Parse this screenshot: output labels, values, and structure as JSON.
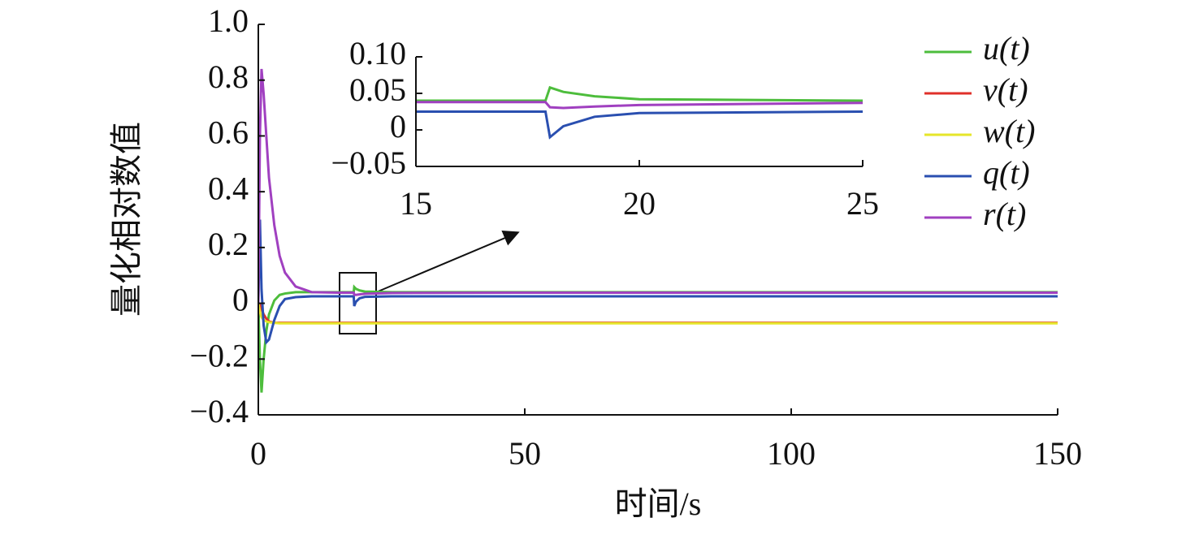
{
  "chart_data": {
    "type": "line",
    "xlabel": "时间/s",
    "ylabel": "量化相对数值",
    "x": [
      0,
      0.3,
      0.6,
      1,
      1.5,
      2,
      3,
      4,
      5,
      7,
      10,
      15,
      17.9,
      18,
      18.3,
      19,
      20,
      25,
      50,
      100,
      150
    ],
    "series": [
      {
        "name": "u(t)",
        "color": "#4dbd3c",
        "values": [
          0,
          -0.2,
          -0.32,
          -0.2,
          -0.1,
          -0.04,
          0.01,
          0.03,
          0.035,
          0.04,
          0.04,
          0.04,
          0.04,
          0.058,
          0.052,
          0.046,
          0.042,
          0.04,
          0.04,
          0.04,
          0.04
        ]
      },
      {
        "name": "v(t)",
        "color": "#e0302a",
        "values": [
          0,
          -0.005,
          -0.02,
          -0.04,
          -0.055,
          -0.065,
          -0.07,
          -0.07,
          -0.07,
          -0.07,
          -0.07,
          -0.07,
          -0.07,
          -0.07,
          -0.07,
          -0.07,
          -0.07,
          -0.07,
          -0.07,
          -0.07,
          -0.07
        ]
      },
      {
        "name": "w(t)",
        "color": "#e6e62a",
        "values": [
          0,
          -0.03,
          -0.05,
          -0.06,
          -0.065,
          -0.068,
          -0.07,
          -0.072,
          -0.072,
          -0.072,
          -0.072,
          -0.072,
          -0.072,
          -0.072,
          -0.072,
          -0.072,
          -0.072,
          -0.072,
          -0.072,
          -0.072,
          -0.072
        ]
      },
      {
        "name": "q(t)",
        "color": "#2a4fb0",
        "values": [
          0,
          0.3,
          0.05,
          -0.08,
          -0.14,
          -0.13,
          -0.06,
          -0.01,
          0.015,
          0.022,
          0.025,
          0.025,
          0.025,
          -0.01,
          0.005,
          0.018,
          0.023,
          0.025,
          0.025,
          0.025,
          0.025
        ]
      },
      {
        "name": "r(t)",
        "color": "#a040c0",
        "values": [
          0,
          0.6,
          0.84,
          0.75,
          0.6,
          0.45,
          0.28,
          0.17,
          0.11,
          0.06,
          0.04,
          0.038,
          0.038,
          0.031,
          0.03,
          0.032,
          0.034,
          0.037,
          0.038,
          0.038,
          0.038
        ]
      }
    ],
    "xlim": [
      0,
      150
    ],
    "xticks": [
      0,
      50,
      100,
      150
    ],
    "ylim": [
      -0.4,
      1
    ],
    "yticks": [
      {
        "value": -0.4,
        "label": "−0.4"
      },
      {
        "value": -0.2,
        "label": "−0.2"
      },
      0,
      0.2,
      0.4,
      0.6,
      0.8,
      {
        "value": 1,
        "label": "1.0"
      }
    ],
    "legend": "right",
    "inset": {
      "xlim": [
        15,
        25
      ],
      "xticks": [
        15,
        20,
        25
      ],
      "ylim": [
        -0.05,
        0.1
      ],
      "yticks": [
        {
          "value": -0.05,
          "label": "−0.05"
        },
        0,
        {
          "value": 0.05,
          "label": "0.05"
        },
        {
          "value": 0.1,
          "label": "0.10"
        }
      ]
    }
  }
}
